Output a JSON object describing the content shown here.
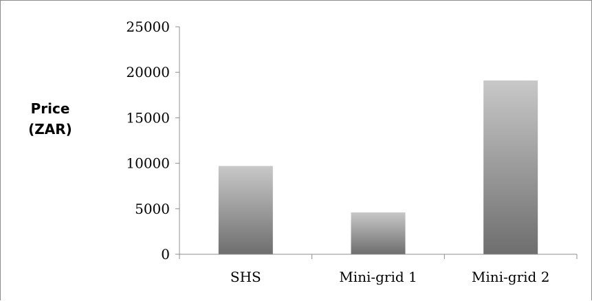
{
  "chart_data": {
    "type": "bar",
    "title": "",
    "xlabel": "",
    "ylabel_lines": [
      "Price",
      "(ZAR)"
    ],
    "categories": [
      "SHS",
      "Mini-grid 1",
      "Mini-grid 2"
    ],
    "values": [
      9700,
      4600,
      19100
    ],
    "ylim": [
      0,
      25000
    ],
    "yticks": [
      0,
      5000,
      10000,
      15000,
      20000,
      25000
    ],
    "grid": false,
    "legend": "none",
    "bar_gradient": [
      "#c8c8c8",
      "#6e6e6e"
    ],
    "axis_color": "#8c8c8c"
  }
}
